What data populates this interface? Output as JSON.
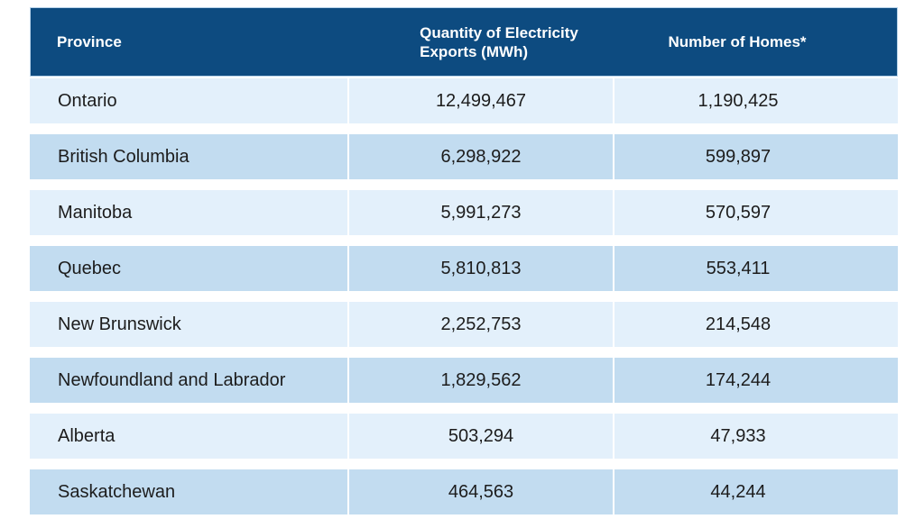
{
  "colors": {
    "header_bg": "#0d4b80",
    "row_light": "#e3f0fb",
    "row_dark": "#c2dcf0",
    "header_text": "#ffffff",
    "body_text": "#1c1c1c"
  },
  "table": {
    "headers": [
      {
        "label": "Province"
      },
      {
        "label": "Quantity of Electricity Exports (MWh)",
        "line1": "Quantity of Electricity",
        "line2": "Exports (MWh)"
      },
      {
        "label": "Number of Homes*"
      }
    ],
    "rows": [
      {
        "province": "Ontario",
        "exports": "12,499,467",
        "homes": "1,190,425"
      },
      {
        "province": "British Columbia",
        "exports": "6,298,922",
        "homes": "599,897"
      },
      {
        "province": "Manitoba",
        "exports": "5,991,273",
        "homes": "570,597"
      },
      {
        "province": "Quebec",
        "exports": "5,810,813",
        "homes": "553,411"
      },
      {
        "province": "New Brunswick",
        "exports": "2,252,753",
        "homes": "214,548"
      },
      {
        "province": "Newfoundland and Labrador",
        "exports": "1,829,562",
        "homes": "174,244"
      },
      {
        "province": "Alberta",
        "exports": "503,294",
        "homes": "47,933"
      },
      {
        "province": "Saskatchewan",
        "exports": "464,563",
        "homes": "44,244"
      }
    ]
  },
  "chart_data": {
    "type": "table",
    "title": "",
    "columns": [
      "Province",
      "Quantity of Electricity Exports (MWh)",
      "Number of Homes*"
    ],
    "rows": [
      [
        "Ontario",
        12499467,
        1190425
      ],
      [
        "British Columbia",
        6298922,
        599897
      ],
      [
        "Manitoba",
        5991273,
        570597
      ],
      [
        "Quebec",
        5810813,
        553411
      ],
      [
        "New Brunswick",
        2252753,
        214548
      ],
      [
        "Newfoundland and Labrador",
        1829562,
        174244
      ],
      [
        "Alberta",
        503294,
        47933
      ],
      [
        "Saskatchewan",
        464563,
        44244
      ]
    ],
    "layout_hints": {
      "header_fill": "#0d4b80",
      "alternating_row_fills": [
        "#e3f0fb",
        "#c2dcf0"
      ],
      "column_alignments": [
        "left",
        "center",
        "center"
      ]
    }
  }
}
